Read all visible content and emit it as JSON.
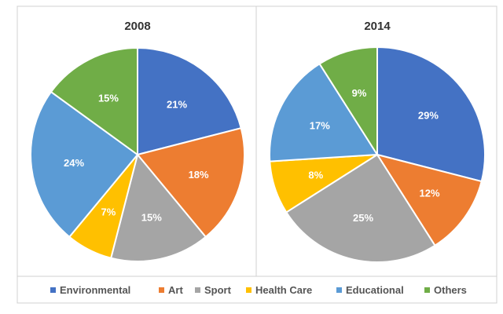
{
  "chart_data": [
    {
      "type": "pie",
      "title": "2008",
      "categories": [
        "Environmental",
        "Art",
        "Sport",
        "Health Care",
        "Educational",
        "Others"
      ],
      "values": [
        21,
        18,
        15,
        7,
        24,
        15
      ],
      "labels": [
        "21%",
        "18%",
        "15%",
        "7%",
        "24%",
        "15%"
      ],
      "start": "12 o'clock, clockwise"
    },
    {
      "type": "pie",
      "title": "2014",
      "categories": [
        "Environmental",
        "Art",
        "Sport",
        "Health Care",
        "Educational",
        "Others"
      ],
      "values": [
        29,
        12,
        25,
        8,
        17,
        9
      ],
      "labels": [
        "29%",
        "12%",
        "25%",
        "8%",
        "17%",
        "9%"
      ],
      "start": "12 o'clock, clockwise"
    }
  ],
  "legend": {
    "position": "bottom",
    "items": [
      "Environmental",
      "Art",
      "Sport",
      "Health Care",
      "Educational",
      "Others"
    ]
  },
  "colors": [
    "#4472C4",
    "#ED7D31",
    "#A5A5A5",
    "#FFC000",
    "#5B9BD5",
    "#70AD47"
  ]
}
